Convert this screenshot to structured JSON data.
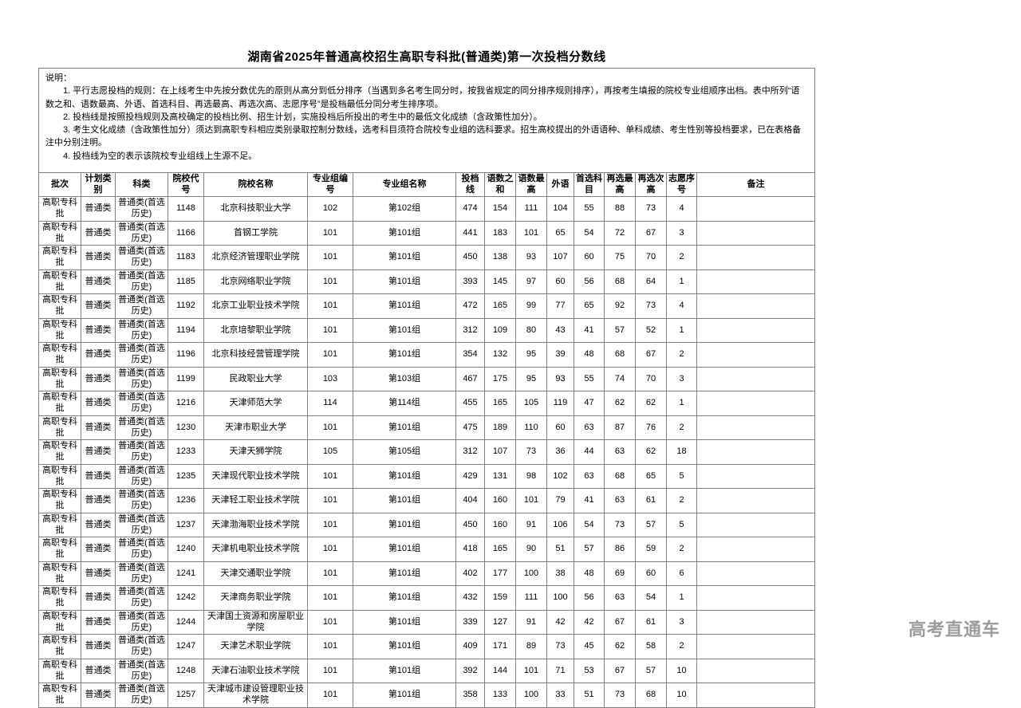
{
  "page": {
    "title": "湖南省2025年普通高校招生高职专科批(普通类)第一次投档分数线",
    "watermark": "高考直通车"
  },
  "colors": {
    "border": "#808080",
    "text": "#000000",
    "watermark": "#9d9d9d",
    "background": "#ffffff"
  },
  "notes": {
    "label": "说明：",
    "items": [
      "1. 平行志愿投档的规则：在上线考生中先按分数优先的原则从高分到低分排序（当遇到多名考生同分时，按我省规定的同分排序规则排序），再按考生填报的院校专业组顺序出档。表中所列“语数之和、语数最高、外语、首选科目、再选最高、再选次高、志愿序号”是投档最低分同分考生排序项。",
      "2. 投档线是按照投档规则及高校确定的投档比例、招生计划，实施投档后所投出的考生中的最低文化成绩（含政策性加分）。",
      "3. 考生文化成绩（含政策性加分）须达到高职专科相应类别录取控制分数线，选考科目须符合院校专业组的选科要求。招生高校提出的外语语种、单科成绩、考生性别等投档要求，已在表格备注中分别注明。",
      "4. 投档线为空的表示该院校专业组线上生源不足。"
    ]
  },
  "table": {
    "headers": [
      "批次",
      "计划类别",
      "科类",
      "院校代号",
      "院校名称",
      "专业组编号",
      "专业组名称",
      "投档线",
      "语数之和",
      "语数最高",
      "外语",
      "首选科目",
      "再选最高",
      "再选次高",
      "志愿序号",
      "备注"
    ],
    "rows": [
      [
        "高职专科批",
        "普通类",
        "普通类(首选历史)",
        "1148",
        "北京科技职业大学",
        "102",
        "第102组",
        474,
        154,
        111,
        104,
        55,
        88,
        73,
        4,
        ""
      ],
      [
        "高职专科批",
        "普通类",
        "普通类(首选历史)",
        "1166",
        "首钢工学院",
        "101",
        "第101组",
        441,
        183,
        101,
        65,
        54,
        72,
        67,
        3,
        ""
      ],
      [
        "高职专科批",
        "普通类",
        "普通类(首选历史)",
        "1183",
        "北京经济管理职业学院",
        "101",
        "第101组",
        450,
        138,
        93,
        107,
        60,
        75,
        70,
        2,
        ""
      ],
      [
        "高职专科批",
        "普通类",
        "普通类(首选历史)",
        "1185",
        "北京网络职业学院",
        "101",
        "第101组",
        393,
        145,
        97,
        60,
        56,
        68,
        64,
        1,
        ""
      ],
      [
        "高职专科批",
        "普通类",
        "普通类(首选历史)",
        "1192",
        "北京工业职业技术学院",
        "101",
        "第101组",
        472,
        165,
        99,
        77,
        65,
        92,
        73,
        4,
        ""
      ],
      [
        "高职专科批",
        "普通类",
        "普通类(首选历史)",
        "1194",
        "北京培黎职业学院",
        "101",
        "第101组",
        312,
        109,
        80,
        43,
        41,
        57,
        52,
        1,
        ""
      ],
      [
        "高职专科批",
        "普通类",
        "普通类(首选历史)",
        "1196",
        "北京科技经营管理学院",
        "101",
        "第101组",
        354,
        132,
        95,
        39,
        48,
        68,
        67,
        2,
        ""
      ],
      [
        "高职专科批",
        "普通类",
        "普通类(首选历史)",
        "1199",
        "民政职业大学",
        "103",
        "第103组",
        467,
        175,
        95,
        93,
        55,
        74,
        70,
        3,
        ""
      ],
      [
        "高职专科批",
        "普通类",
        "普通类(首选历史)",
        "1216",
        "天津师范大学",
        "114",
        "第114组",
        455,
        165,
        105,
        119,
        47,
        62,
        62,
        1,
        ""
      ],
      [
        "高职专科批",
        "普通类",
        "普通类(首选历史)",
        "1230",
        "天津市职业大学",
        "101",
        "第101组",
        475,
        189,
        110,
        60,
        63,
        87,
        76,
        2,
        ""
      ],
      [
        "高职专科批",
        "普通类",
        "普通类(首选历史)",
        "1233",
        "天津天狮学院",
        "105",
        "第105组",
        312,
        107,
        73,
        36,
        44,
        63,
        62,
        18,
        ""
      ],
      [
        "高职专科批",
        "普通类",
        "普通类(首选历史)",
        "1235",
        "天津现代职业技术学院",
        "101",
        "第101组",
        429,
        131,
        98,
        102,
        63,
        68,
        65,
        5,
        ""
      ],
      [
        "高职专科批",
        "普通类",
        "普通类(首选历史)",
        "1236",
        "天津轻工职业技术学院",
        "101",
        "第101组",
        404,
        160,
        101,
        79,
        41,
        63,
        61,
        2,
        ""
      ],
      [
        "高职专科批",
        "普通类",
        "普通类(首选历史)",
        "1237",
        "天津渤海职业技术学院",
        "101",
        "第101组",
        450,
        160,
        91,
        106,
        54,
        73,
        57,
        5,
        ""
      ],
      [
        "高职专科批",
        "普通类",
        "普通类(首选历史)",
        "1240",
        "天津机电职业技术学院",
        "101",
        "第101组",
        418,
        165,
        90,
        51,
        57,
        86,
        59,
        2,
        ""
      ],
      [
        "高职专科批",
        "普通类",
        "普通类(首选历史)",
        "1241",
        "天津交通职业学院",
        "101",
        "第101组",
        402,
        177,
        100,
        38,
        48,
        69,
        60,
        6,
        ""
      ],
      [
        "高职专科批",
        "普通类",
        "普通类(首选历史)",
        "1242",
        "天津商务职业学院",
        "101",
        "第101组",
        432,
        159,
        111,
        100,
        56,
        63,
        54,
        1,
        ""
      ],
      [
        "高职专科批",
        "普通类",
        "普通类(首选历史)",
        "1244",
        "天津国土资源和房屋职业学院",
        "101",
        "第101组",
        339,
        127,
        91,
        42,
        42,
        67,
        61,
        3,
        ""
      ],
      [
        "高职专科批",
        "普通类",
        "普通类(首选历史)",
        "1247",
        "天津艺术职业学院",
        "101",
        "第101组",
        409,
        171,
        89,
        73,
        45,
        62,
        58,
        2,
        ""
      ],
      [
        "高职专科批",
        "普通类",
        "普通类(首选历史)",
        "1248",
        "天津石油职业技术学院",
        "101",
        "第101组",
        392,
        144,
        101,
        71,
        53,
        67,
        57,
        10,
        ""
      ],
      [
        "高职专科批",
        "普通类",
        "普通类(首选历史)",
        "1257",
        "天津城市建设管理职业技术学院",
        "101",
        "第101组",
        358,
        133,
        100,
        33,
        51,
        73,
        68,
        10,
        ""
      ]
    ]
  }
}
